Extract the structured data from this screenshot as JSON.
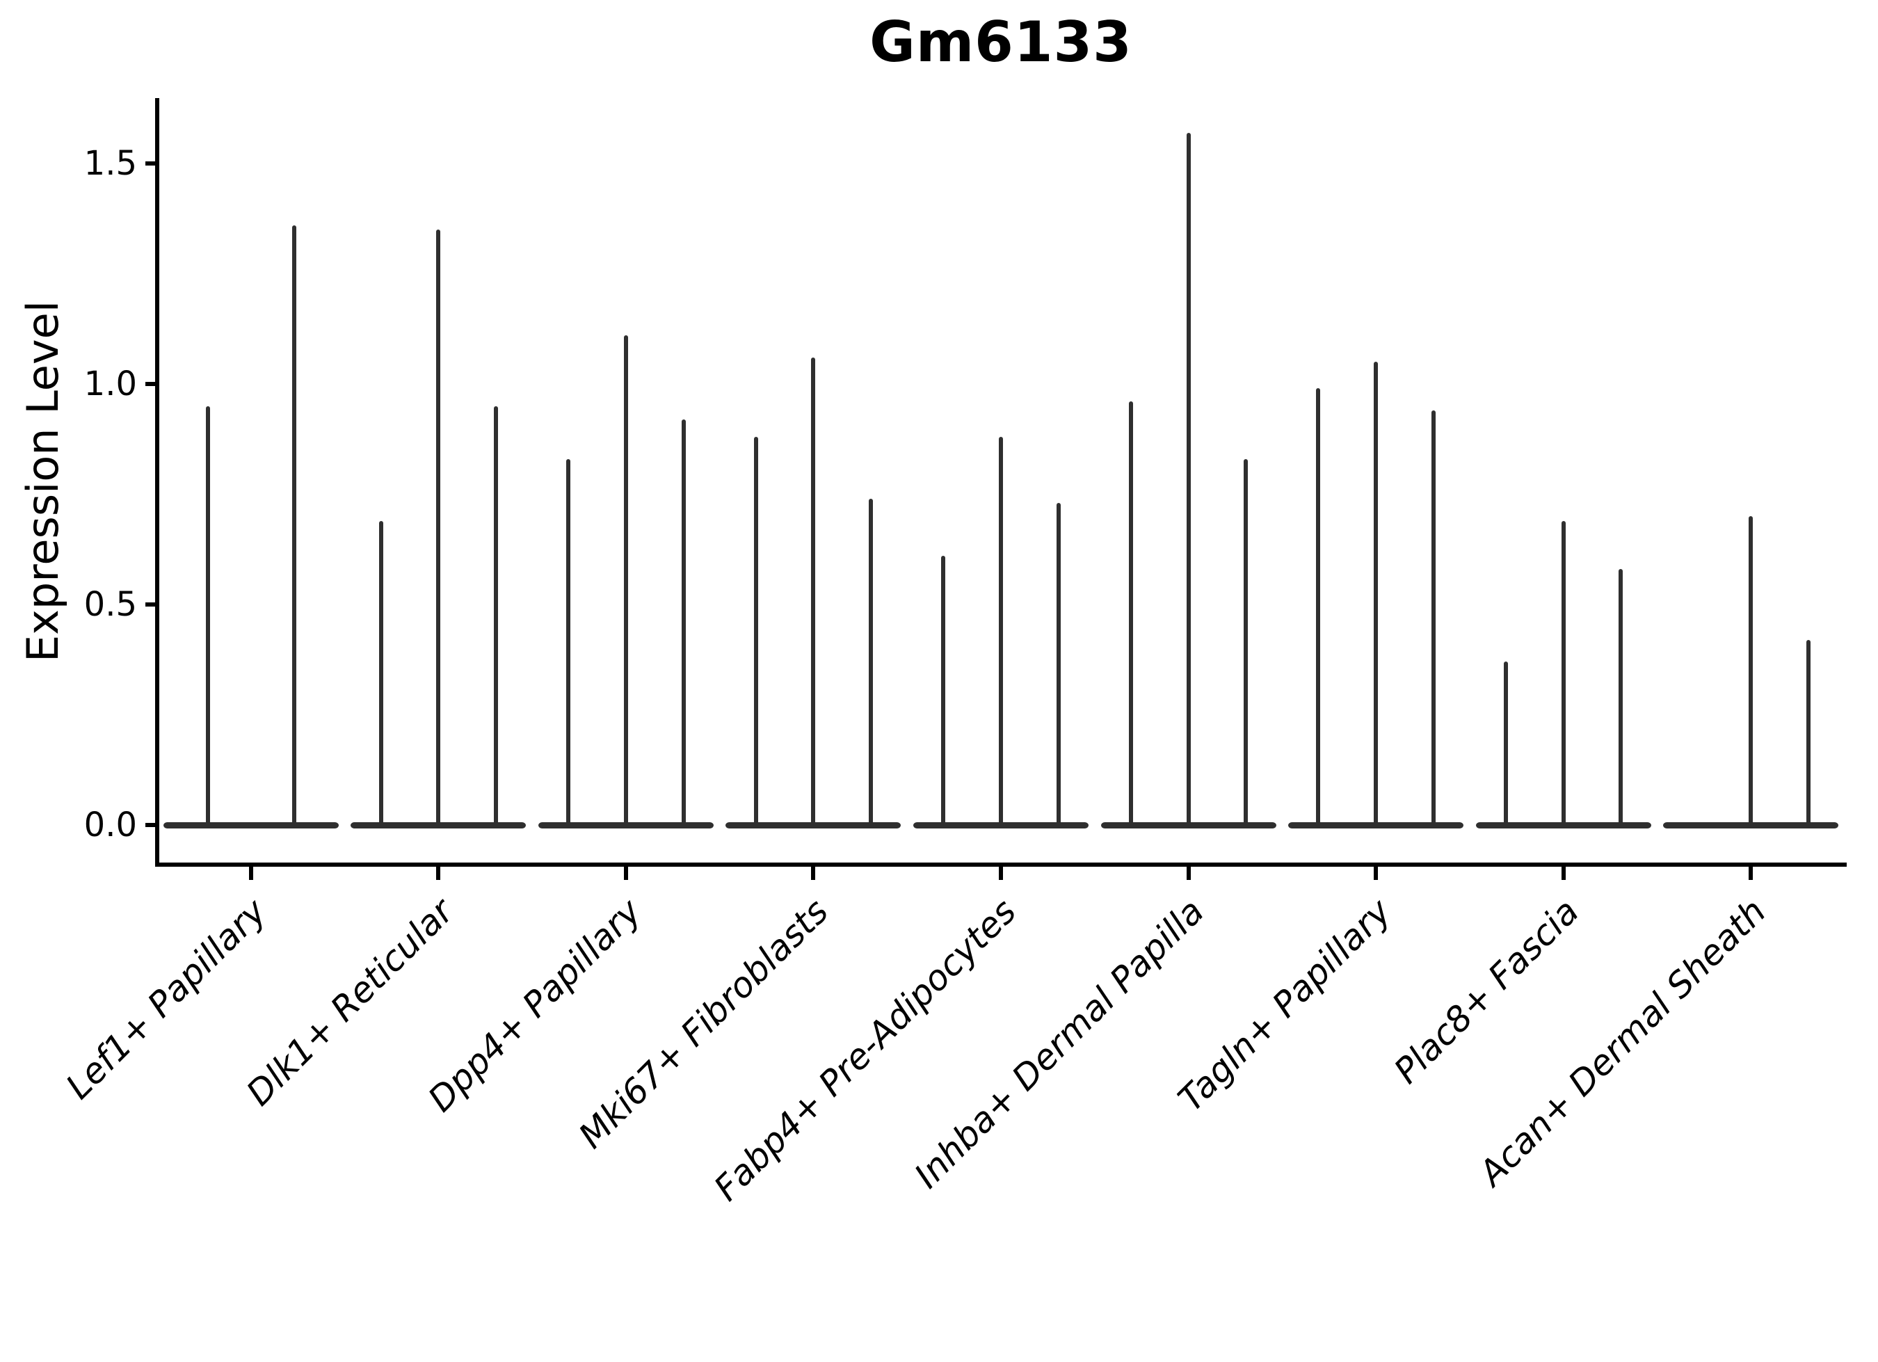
{
  "chart_data": {
    "type": "violin",
    "title": "Gm6133",
    "xlabel": "",
    "ylabel": "Expression Level",
    "ylim": [
      -0.09,
      1.65
    ],
    "grid": false,
    "legend": "none",
    "background": "#ffffff",
    "violin_color": "#2f2f2f",
    "axis_color": "#000000",
    "x_label_style": "italic, rotated 45deg, right-anchored",
    "yticks": [
      {
        "label": "0.0",
        "value": 0.0
      },
      {
        "label": "0.5",
        "value": 0.5
      },
      {
        "label": "1.0",
        "value": 1.0
      },
      {
        "label": "1.5",
        "value": 1.5
      }
    ],
    "categories": [
      "Lef1+ Papillary",
      "Dlk1+ Reticular",
      "Dpp4+ Papillary",
      "Mki67+ Fibroblasts",
      "Fabp4+ Pre-Adipocytes",
      "Inhba+ Dermal Papilla",
      "Tagln+ Papillary",
      "Plac8+ Fascia",
      "Acan+ Dermal Sheath"
    ],
    "series": [
      {
        "category": "Lef1+ Papillary",
        "violin_max_values": [
          0.95,
          1.36
        ]
      },
      {
        "category": "Dlk1+ Reticular",
        "violin_max_values": [
          0.69,
          1.35,
          0.95
        ]
      },
      {
        "category": "Dpp4+ Papillary",
        "violin_max_values": [
          0.83,
          1.11,
          0.92
        ]
      },
      {
        "category": "Mki67+ Fibroblasts",
        "violin_max_values": [
          0.88,
          1.06,
          0.74
        ]
      },
      {
        "category": "Fabp4+ Pre-Adipocytes",
        "violin_max_values": [
          0.61,
          0.88,
          0.73
        ]
      },
      {
        "category": "Inhba+ Dermal Papilla",
        "violin_max_values": [
          0.96,
          1.57,
          0.83
        ]
      },
      {
        "category": "Tagln+ Papillary",
        "violin_max_values": [
          0.99,
          1.05,
          0.94
        ]
      },
      {
        "category": "Plac8+ Fascia",
        "violin_max_values": [
          0.37,
          0.69,
          0.58
        ]
      },
      {
        "category": "Acan+ Dermal Sheath",
        "violin_max_values": [
          0.0,
          0.7,
          0.42
        ]
      }
    ]
  }
}
